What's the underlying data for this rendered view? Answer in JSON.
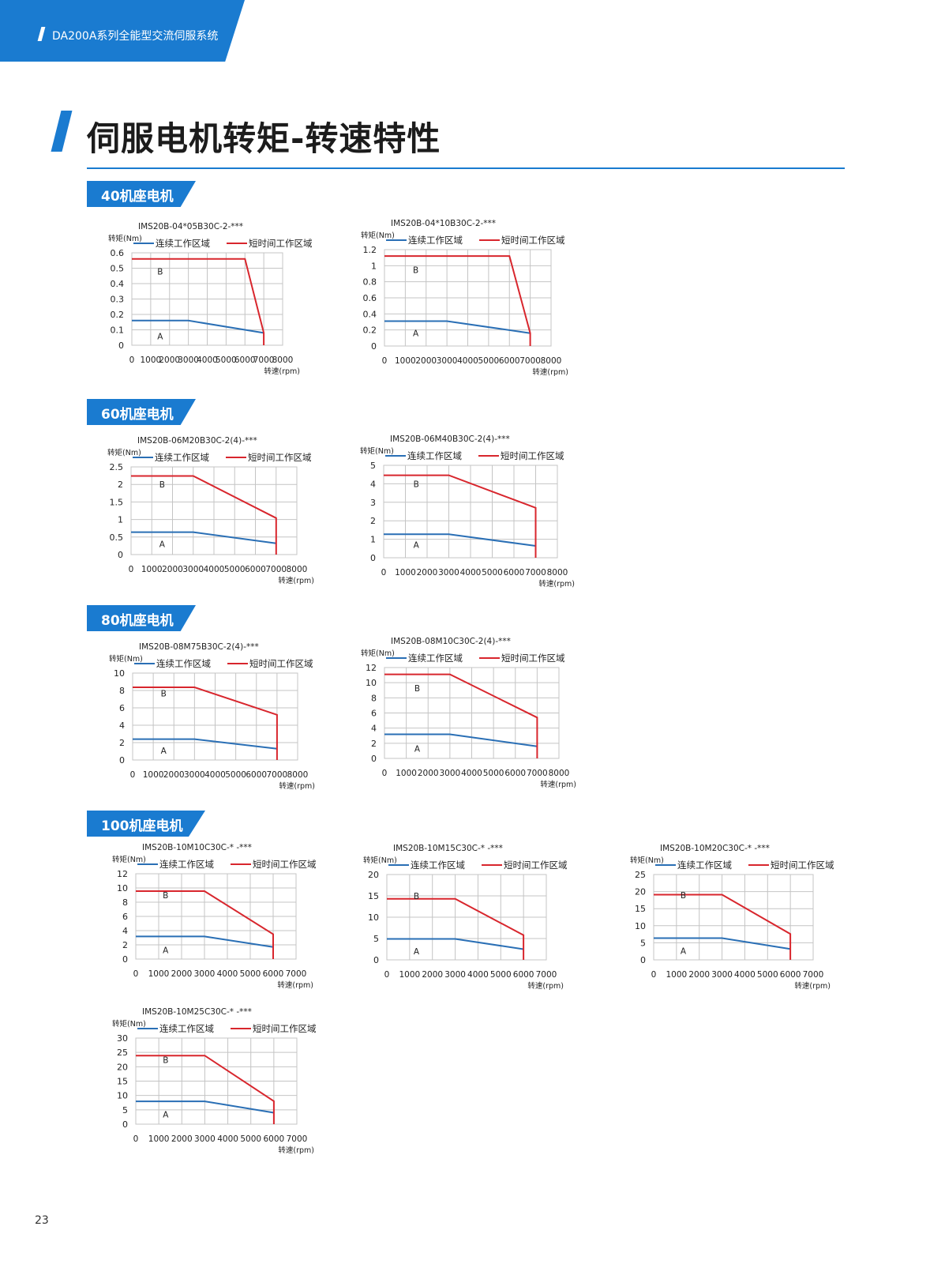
{
  "header": {
    "tab_text": "DA200A系列全能型交流伺服系统",
    "page_title": "伺服电机转矩-转速特性",
    "page_number": "23"
  },
  "sections": [
    {
      "label": "40机座电机"
    },
    {
      "label": "60机座电机"
    },
    {
      "label": "80机座电机"
    },
    {
      "label": "100机座电机"
    }
  ],
  "colors": {
    "accent": "#1a7bd0",
    "continuous": "#2a6fb5",
    "short_time": "#d8262d",
    "grid": "#c4c4c4"
  },
  "chart_data": [
    {
      "type": "line",
      "title": "IMS20B-04*05B30C-2-***",
      "ylabel": "转矩(Nm)",
      "xlabel": "转速(rpm)",
      "x_ticks": [
        0,
        1000,
        2000,
        3000,
        4000,
        5000,
        6000,
        7000,
        8000
      ],
      "y_ticks": [
        0,
        0.1,
        0.2,
        0.3,
        0.4,
        0.5,
        0.6
      ],
      "ylim": [
        0,
        0.6
      ],
      "xlim": [
        0,
        8000
      ],
      "series": [
        {
          "name": "连续工作区域",
          "x": [
            0,
            3000,
            7000
          ],
          "y": [
            0.16,
            0.16,
            0.08
          ]
        },
        {
          "name": "短时间工作区域",
          "x": [
            0,
            6000,
            7000,
            7000
          ],
          "y": [
            0.56,
            0.56,
            0.08,
            0
          ]
        }
      ],
      "annotations": [
        {
          "text": "B",
          "x": 1500,
          "y": 0.48
        },
        {
          "text": "A",
          "x": 1500,
          "y": 0.06
        }
      ]
    },
    {
      "type": "line",
      "title": "IMS20B-04*10B30C-2-***",
      "ylabel": "转矩(Nm)",
      "xlabel": "转速(rpm)",
      "x_ticks": [
        0,
        1000,
        2000,
        3000,
        4000,
        5000,
        6000,
        7000,
        8000
      ],
      "y_ticks": [
        0,
        0.2,
        0.4,
        0.6,
        0.8,
        1,
        1.2
      ],
      "ylim": [
        0,
        1.2
      ],
      "xlim": [
        0,
        8000
      ],
      "series": [
        {
          "name": "连续工作区域",
          "x": [
            0,
            3000,
            7000
          ],
          "y": [
            0.31,
            0.31,
            0.16
          ]
        },
        {
          "name": "短时间工作区域",
          "x": [
            0,
            6000,
            7000,
            7000
          ],
          "y": [
            1.12,
            1.12,
            0.16,
            0
          ]
        }
      ],
      "annotations": [
        {
          "text": "B",
          "x": 1500,
          "y": 0.95
        },
        {
          "text": "A",
          "x": 1500,
          "y": 0.16
        }
      ]
    },
    {
      "type": "line",
      "title": "IMS20B-06M20B30C-2(4)-***",
      "ylabel": "转矩(Nm)",
      "xlabel": "转速(rpm)",
      "x_ticks": [
        0,
        1000,
        2000,
        3000,
        4000,
        5000,
        6000,
        7000,
        8000
      ],
      "y_ticks": [
        0,
        0.5,
        1,
        1.5,
        2,
        2.5
      ],
      "ylim": [
        0,
        2.5
      ],
      "xlim": [
        0,
        8000
      ],
      "series": [
        {
          "name": "连续工作区域",
          "x": [
            0,
            3000,
            7000
          ],
          "y": [
            0.64,
            0.64,
            0.32
          ]
        },
        {
          "name": "短时间工作区域",
          "x": [
            0,
            3000,
            7000,
            7000
          ],
          "y": [
            2.24,
            2.24,
            1.04,
            0
          ]
        }
      ],
      "annotations": [
        {
          "text": "B",
          "x": 1500,
          "y": 2.0
        },
        {
          "text": "A",
          "x": 1500,
          "y": 0.3
        }
      ]
    },
    {
      "type": "line",
      "title": "IMS20B-06M40B30C-2(4)-***",
      "ylabel": "转矩(Nm)",
      "xlabel": "转速(rpm)",
      "x_ticks": [
        0,
        1000,
        2000,
        3000,
        4000,
        5000,
        6000,
        7000,
        8000
      ],
      "y_ticks": [
        0,
        1,
        2,
        3,
        4,
        5
      ],
      "ylim": [
        0,
        5
      ],
      "xlim": [
        0,
        8000
      ],
      "series": [
        {
          "name": "连续工作区域",
          "x": [
            0,
            3000,
            7000
          ],
          "y": [
            1.27,
            1.27,
            0.64
          ]
        },
        {
          "name": "短时间工作区域",
          "x": [
            0,
            3000,
            7000,
            7000
          ],
          "y": [
            4.46,
            4.46,
            2.7,
            0
          ]
        }
      ],
      "annotations": [
        {
          "text": "B",
          "x": 1500,
          "y": 4.0
        },
        {
          "text": "A",
          "x": 1500,
          "y": 0.7
        }
      ]
    },
    {
      "type": "line",
      "title": "IMS20B-08M75B30C-2(4)-***",
      "ylabel": "转矩(Nm)",
      "xlabel": "转速(rpm)",
      "x_ticks": [
        0,
        1000,
        2000,
        3000,
        4000,
        5000,
        6000,
        7000,
        8000
      ],
      "y_ticks": [
        0,
        2,
        4,
        6,
        8,
        10
      ],
      "ylim": [
        0,
        10
      ],
      "xlim": [
        0,
        8000
      ],
      "series": [
        {
          "name": "连续工作区域",
          "x": [
            0,
            3000,
            7000
          ],
          "y": [
            2.4,
            2.4,
            1.3
          ]
        },
        {
          "name": "短时间工作区域",
          "x": [
            0,
            3000,
            7000,
            7000
          ],
          "y": [
            8.36,
            8.36,
            5.2,
            0
          ]
        }
      ],
      "annotations": [
        {
          "text": "B",
          "x": 1500,
          "y": 7.7
        },
        {
          "text": "A",
          "x": 1500,
          "y": 1.1
        }
      ]
    },
    {
      "type": "line",
      "title": "IMS20B-08M10C30C-2(4)-***",
      "ylabel": "转矩(Nm)",
      "xlabel": "转速(rpm)",
      "x_ticks": [
        0,
        1000,
        2000,
        3000,
        4000,
        5000,
        6000,
        7000,
        8000
      ],
      "y_ticks": [
        0,
        2,
        4,
        6,
        8,
        10,
        12
      ],
      "ylim": [
        0,
        12
      ],
      "xlim": [
        0,
        8000
      ],
      "series": [
        {
          "name": "连续工作区域",
          "x": [
            0,
            3000,
            7000
          ],
          "y": [
            3.18,
            3.18,
            1.6
          ]
        },
        {
          "name": "短时间工作区域",
          "x": [
            0,
            3000,
            7000,
            7000
          ],
          "y": [
            11.1,
            11.1,
            5.4,
            0
          ]
        }
      ],
      "annotations": [
        {
          "text": "B",
          "x": 1500,
          "y": 9.3
        },
        {
          "text": "A",
          "x": 1500,
          "y": 1.3
        }
      ]
    },
    {
      "type": "line",
      "title": "IMS20B-10M10C30C-* -***",
      "ylabel": "转矩(Nm)",
      "xlabel": "转速(rpm)",
      "x_ticks": [
        0,
        1000,
        2000,
        3000,
        4000,
        5000,
        6000,
        7000
      ],
      "y_ticks": [
        0,
        2,
        4,
        6,
        8,
        10,
        12
      ],
      "ylim": [
        0,
        12
      ],
      "xlim": [
        0,
        7000
      ],
      "series": [
        {
          "name": "连续工作区域",
          "x": [
            0,
            3000,
            6000
          ],
          "y": [
            3.18,
            3.18,
            1.7
          ]
        },
        {
          "name": "短时间工作区域",
          "x": [
            0,
            3000,
            6000,
            6000
          ],
          "y": [
            9.55,
            9.55,
            3.5,
            0
          ]
        }
      ],
      "annotations": [
        {
          "text": "B",
          "x": 1300,
          "y": 9.0
        },
        {
          "text": "A",
          "x": 1300,
          "y": 1.3
        }
      ]
    },
    {
      "type": "line",
      "title": "IMS20B-10M15C30C-* -***",
      "ylabel": "转矩(Nm)",
      "xlabel": "转速(rpm)",
      "x_ticks": [
        0,
        1000,
        2000,
        3000,
        4000,
        5000,
        6000,
        7000
      ],
      "y_ticks": [
        0,
        5,
        10,
        15,
        20
      ],
      "ylim": [
        0,
        20
      ],
      "xlim": [
        0,
        7000
      ],
      "series": [
        {
          "name": "连续工作区域",
          "x": [
            0,
            3000,
            6000
          ],
          "y": [
            4.9,
            4.9,
            2.5
          ]
        },
        {
          "name": "短时间工作区域",
          "x": [
            0,
            3000,
            6000,
            6000
          ],
          "y": [
            14.3,
            14.3,
            5.8,
            0
          ]
        }
      ],
      "annotations": [
        {
          "text": "B",
          "x": 1300,
          "y": 15.0
        },
        {
          "text": "A",
          "x": 1300,
          "y": 2.0
        }
      ]
    },
    {
      "type": "line",
      "title": "IMS20B-10M20C30C-* -***",
      "ylabel": "转矩(Nm)",
      "xlabel": "转速(rpm)",
      "x_ticks": [
        0,
        1000,
        2000,
        3000,
        4000,
        5000,
        6000,
        7000
      ],
      "y_ticks": [
        0,
        5,
        10,
        15,
        20,
        25
      ],
      "ylim": [
        0,
        25
      ],
      "xlim": [
        0,
        7000
      ],
      "series": [
        {
          "name": "连续工作区域",
          "x": [
            0,
            3000,
            6000
          ],
          "y": [
            6.37,
            6.37,
            3.2
          ]
        },
        {
          "name": "短时间工作区域",
          "x": [
            0,
            3000,
            6000,
            6000
          ],
          "y": [
            19.1,
            19.1,
            7.6,
            0
          ]
        }
      ],
      "annotations": [
        {
          "text": "B",
          "x": 1300,
          "y": 19.0
        },
        {
          "text": "A",
          "x": 1300,
          "y": 2.7
        }
      ]
    },
    {
      "type": "line",
      "title": "IMS20B-10M25C30C-* -***",
      "ylabel": "转矩(Nm)",
      "xlabel": "转速(rpm)",
      "x_ticks": [
        0,
        1000,
        2000,
        3000,
        4000,
        5000,
        6000,
        7000
      ],
      "y_ticks": [
        0,
        5,
        10,
        15,
        20,
        25,
        30
      ],
      "ylim": [
        0,
        30
      ],
      "xlim": [
        0,
        7000
      ],
      "series": [
        {
          "name": "连续工作区域",
          "x": [
            0,
            3000,
            6000
          ],
          "y": [
            7.96,
            7.96,
            4.0
          ]
        },
        {
          "name": "短时间工作区域",
          "x": [
            0,
            3000,
            6000,
            6000
          ],
          "y": [
            23.9,
            23.9,
            8.0,
            0
          ]
        }
      ],
      "annotations": [
        {
          "text": "B",
          "x": 1300,
          "y": 22.5
        },
        {
          "text": "A",
          "x": 1300,
          "y": 3.5
        }
      ]
    }
  ]
}
